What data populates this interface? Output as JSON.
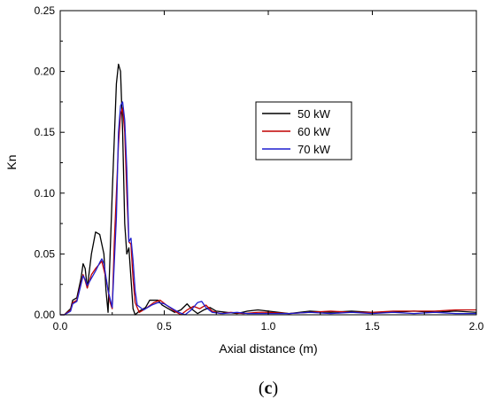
{
  "chart_data": {
    "type": "line",
    "title": "",
    "xlabel": "Axial distance (m)",
    "ylabel": "Kn",
    "xlim": [
      0.0,
      2.0
    ],
    "ylim": [
      0.0,
      0.25
    ],
    "xticks": [
      "0.0",
      "0.5",
      "1.0",
      "1.5",
      "2.0"
    ],
    "yticks": [
      "0.00",
      "0.05",
      "0.10",
      "0.15",
      "0.20",
      "0.25"
    ],
    "grid": false,
    "legend_position": "upper-middle-right",
    "panel_label": {
      "open": "(",
      "letter": "c",
      "close": ")"
    },
    "series": [
      {
        "name": "50 kW",
        "color": "#000000",
        "points": [
          [
            0.0,
            0.0
          ],
          [
            0.02,
            0.0
          ],
          [
            0.05,
            0.005
          ],
          [
            0.06,
            0.012
          ],
          [
            0.08,
            0.014
          ],
          [
            0.1,
            0.03
          ],
          [
            0.11,
            0.042
          ],
          [
            0.12,
            0.038
          ],
          [
            0.13,
            0.022
          ],
          [
            0.15,
            0.05
          ],
          [
            0.17,
            0.068
          ],
          [
            0.19,
            0.066
          ],
          [
            0.21,
            0.05
          ],
          [
            0.22,
            0.02
          ],
          [
            0.23,
            0.002
          ],
          [
            0.25,
            0.1
          ],
          [
            0.27,
            0.19
          ],
          [
            0.28,
            0.206
          ],
          [
            0.29,
            0.2
          ],
          [
            0.3,
            0.15
          ],
          [
            0.31,
            0.075
          ],
          [
            0.32,
            0.05
          ],
          [
            0.33,
            0.055
          ],
          [
            0.34,
            0.03
          ],
          [
            0.35,
            0.005
          ],
          [
            0.36,
            0.0
          ],
          [
            0.38,
            0.003
          ],
          [
            0.41,
            0.006
          ],
          [
            0.43,
            0.012
          ],
          [
            0.47,
            0.012
          ],
          [
            0.49,
            0.008
          ],
          [
            0.52,
            0.005
          ],
          [
            0.55,
            0.002
          ],
          [
            0.58,
            0.004
          ],
          [
            0.61,
            0.009
          ],
          [
            0.63,
            0.005
          ],
          [
            0.66,
            0.001
          ],
          [
            0.69,
            0.004
          ],
          [
            0.72,
            0.006
          ],
          [
            0.75,
            0.003
          ],
          [
            0.8,
            0.002
          ],
          [
            0.85,
            0.001
          ],
          [
            0.9,
            0.003
          ],
          [
            0.95,
            0.004
          ],
          [
            1.0,
            0.003
          ],
          [
            1.05,
            0.002
          ],
          [
            1.1,
            0.001
          ],
          [
            1.2,
            0.003
          ],
          [
            1.3,
            0.002
          ],
          [
            1.4,
            0.003
          ],
          [
            1.5,
            0.002
          ],
          [
            1.6,
            0.002
          ],
          [
            1.7,
            0.003
          ],
          [
            1.8,
            0.002
          ],
          [
            1.9,
            0.003
          ],
          [
            2.0,
            0.002
          ]
        ]
      },
      {
        "name": "60 kW",
        "color": "#c00000",
        "points": [
          [
            0.0,
            0.0
          ],
          [
            0.02,
            0.0
          ],
          [
            0.05,
            0.004
          ],
          [
            0.06,
            0.01
          ],
          [
            0.08,
            0.012
          ],
          [
            0.1,
            0.026
          ],
          [
            0.11,
            0.033
          ],
          [
            0.12,
            0.028
          ],
          [
            0.13,
            0.022
          ],
          [
            0.15,
            0.033
          ],
          [
            0.17,
            0.038
          ],
          [
            0.19,
            0.042
          ],
          [
            0.2,
            0.044
          ],
          [
            0.22,
            0.03
          ],
          [
            0.24,
            0.01
          ],
          [
            0.25,
            0.005
          ],
          [
            0.26,
            0.06
          ],
          [
            0.28,
            0.14
          ],
          [
            0.29,
            0.165
          ],
          [
            0.3,
            0.17
          ],
          [
            0.31,
            0.15
          ],
          [
            0.32,
            0.1
          ],
          [
            0.33,
            0.06
          ],
          [
            0.34,
            0.058
          ],
          [
            0.35,
            0.03
          ],
          [
            0.36,
            0.01
          ],
          [
            0.38,
            0.002
          ],
          [
            0.41,
            0.005
          ],
          [
            0.45,
            0.01
          ],
          [
            0.48,
            0.012
          ],
          [
            0.51,
            0.008
          ],
          [
            0.55,
            0.003
          ],
          [
            0.58,
            0.0
          ],
          [
            0.61,
            0.004
          ],
          [
            0.64,
            0.007
          ],
          [
            0.67,
            0.005
          ],
          [
            0.7,
            0.008
          ],
          [
            0.73,
            0.003
          ],
          [
            0.77,
            0.001
          ],
          [
            0.82,
            0.002
          ],
          [
            0.88,
            0.001
          ],
          [
            0.95,
            0.002
          ],
          [
            1.0,
            0.002
          ],
          [
            1.1,
            0.001
          ],
          [
            1.2,
            0.002
          ],
          [
            1.3,
            0.003
          ],
          [
            1.4,
            0.002
          ],
          [
            1.5,
            0.002
          ],
          [
            1.6,
            0.003
          ],
          [
            1.7,
            0.003
          ],
          [
            1.8,
            0.003
          ],
          [
            1.9,
            0.004
          ],
          [
            2.0,
            0.004
          ]
        ]
      },
      {
        "name": "70 kW",
        "color": "#1f1fcf",
        "points": [
          [
            0.0,
            0.0
          ],
          [
            0.02,
            0.0
          ],
          [
            0.05,
            0.003
          ],
          [
            0.06,
            0.009
          ],
          [
            0.08,
            0.011
          ],
          [
            0.1,
            0.025
          ],
          [
            0.11,
            0.032
          ],
          [
            0.12,
            0.029
          ],
          [
            0.13,
            0.024
          ],
          [
            0.15,
            0.03
          ],
          [
            0.17,
            0.036
          ],
          [
            0.19,
            0.043
          ],
          [
            0.2,
            0.046
          ],
          [
            0.21,
            0.042
          ],
          [
            0.23,
            0.02
          ],
          [
            0.25,
            0.006
          ],
          [
            0.27,
            0.08
          ],
          [
            0.28,
            0.15
          ],
          [
            0.29,
            0.172
          ],
          [
            0.3,
            0.175
          ],
          [
            0.31,
            0.16
          ],
          [
            0.32,
            0.12
          ],
          [
            0.33,
            0.06
          ],
          [
            0.34,
            0.063
          ],
          [
            0.35,
            0.045
          ],
          [
            0.36,
            0.02
          ],
          [
            0.37,
            0.008
          ],
          [
            0.4,
            0.004
          ],
          [
            0.44,
            0.008
          ],
          [
            0.47,
            0.01
          ],
          [
            0.5,
            0.009
          ],
          [
            0.53,
            0.006
          ],
          [
            0.57,
            0.002
          ],
          [
            0.6,
            0.0
          ],
          [
            0.63,
            0.004
          ],
          [
            0.66,
            0.01
          ],
          [
            0.68,
            0.011
          ],
          [
            0.7,
            0.006
          ],
          [
            0.73,
            0.002
          ],
          [
            0.78,
            0.001
          ],
          [
            0.85,
            0.002
          ],
          [
            0.9,
            0.001
          ],
          [
            1.0,
            0.001
          ],
          [
            1.1,
            0.001
          ],
          [
            1.2,
            0.002
          ],
          [
            1.3,
            0.001
          ],
          [
            1.4,
            0.002
          ],
          [
            1.5,
            0.001
          ],
          [
            1.6,
            0.002
          ],
          [
            1.7,
            0.001
          ],
          [
            1.8,
            0.002
          ],
          [
            1.9,
            0.001
          ],
          [
            2.0,
            0.001
          ]
        ]
      }
    ]
  }
}
